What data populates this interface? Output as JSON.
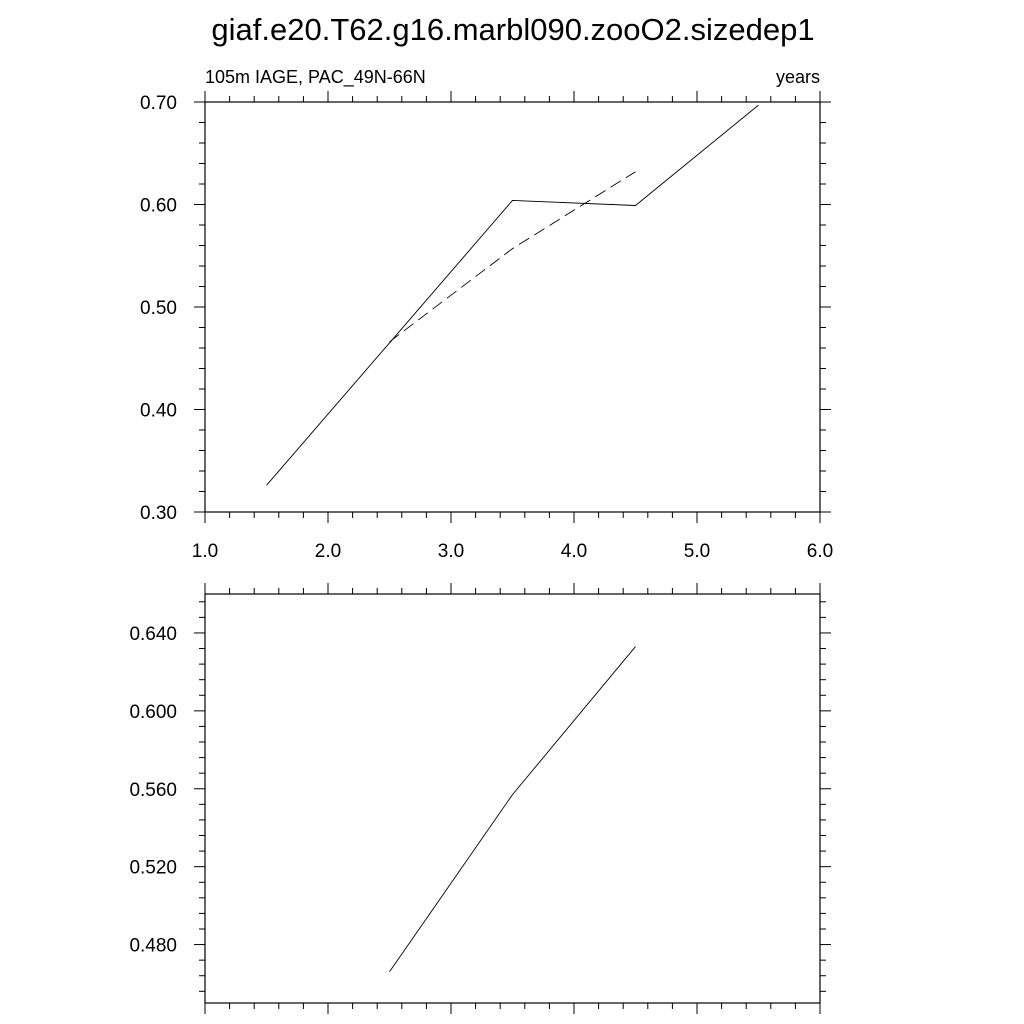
{
  "title": "giaf.e20.T62.g16.marbl090.zooO2.sizedep1",
  "chart_data": [
    {
      "type": "line",
      "left_label": "105m IAGE, PAC_49N-66N",
      "right_label": "years",
      "xlim": [
        1.0,
        6.0
      ],
      "ylim": [
        0.3,
        0.7
      ],
      "x_ticks": [
        "1.0",
        "2.0",
        "3.0",
        "4.0",
        "5.0",
        "6.0"
      ],
      "y_ticks": [
        "0.30",
        "0.40",
        "0.50",
        "0.60",
        "0.70"
      ],
      "grid": false,
      "series": [
        {
          "style": "solid",
          "x": [
            1.5,
            2.5,
            3.5,
            4.5,
            5.5
          ],
          "y": [
            0.326,
            0.465,
            0.604,
            0.599,
            0.697
          ]
        },
        {
          "style": "dashed",
          "x": [
            2.5,
            3.5,
            4.5
          ],
          "y": [
            0.466,
            0.557,
            0.632
          ]
        }
      ]
    },
    {
      "type": "line",
      "xlim": [
        1.0,
        6.0
      ],
      "ylim": [
        0.45,
        0.66
      ],
      "y_ticks": [
        "0.480",
        "0.520",
        "0.560",
        "0.600",
        "0.640"
      ],
      "grid": false,
      "series": [
        {
          "style": "solid",
          "x": [
            2.5,
            3.5,
            4.5
          ],
          "y": [
            0.466,
            0.557,
            0.633
          ]
        }
      ]
    }
  ]
}
